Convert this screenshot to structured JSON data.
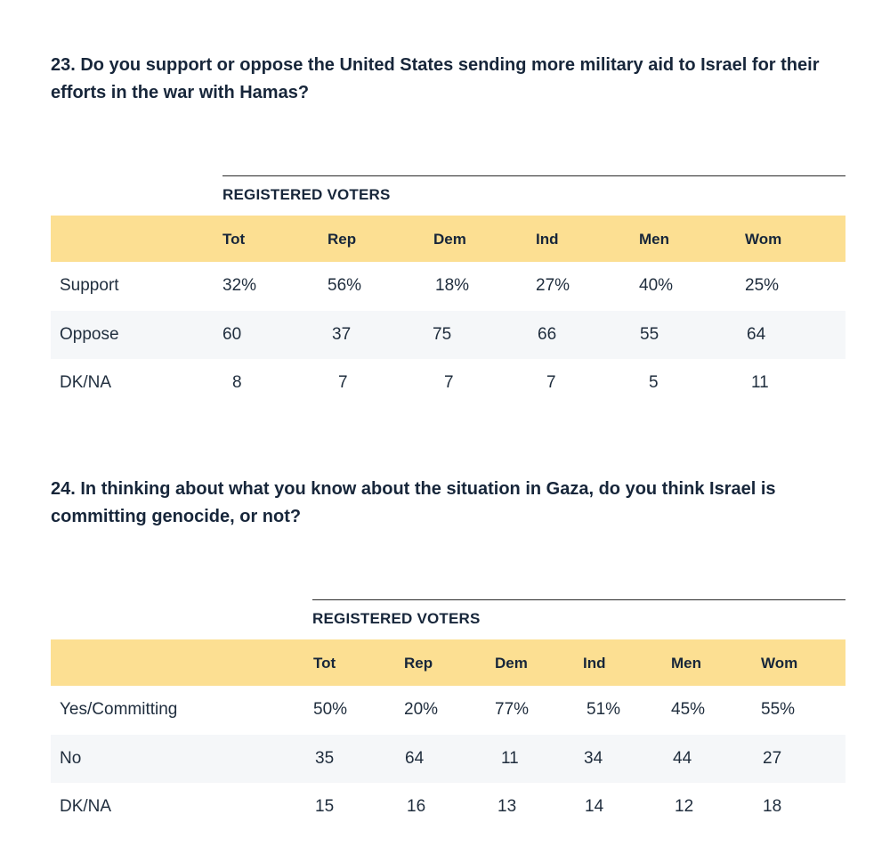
{
  "q23": {
    "question": "23. Do you support or oppose the United States sending more military aid to Israel for their efforts in the war with Hamas?",
    "group_label": "REGISTERED VOTERS",
    "columns": [
      "Tot",
      "Rep",
      "Dem",
      "Ind",
      "Men",
      "Wom"
    ],
    "rows": [
      {
        "label": "Support",
        "values": [
          "32%",
          "56%",
          "18%",
          "27%",
          "40%",
          "25%"
        ]
      },
      {
        "label": "Oppose",
        "values": [
          "60",
          "37",
          "75",
          "66",
          "55",
          "64"
        ]
      },
      {
        "label": "DK/NA",
        "values": [
          "8",
          "7",
          "7",
          "7",
          "5",
          "11"
        ]
      }
    ]
  },
  "q24": {
    "question": "24. In thinking about what you know about the situation in Gaza, do you think Israel is committing genocide, or not?",
    "group_label": "REGISTERED VOTERS",
    "columns": [
      "Tot",
      "Rep",
      "Dem",
      "Ind",
      "Men",
      "Wom"
    ],
    "rows": [
      {
        "label": "Yes/Committing",
        "values": [
          "50%",
          "20%",
          "77%",
          "51%",
          "45%",
          "55%"
        ]
      },
      {
        "label": "No",
        "values": [
          "35",
          "64",
          "11",
          "34",
          "44",
          "27"
        ]
      },
      {
        "label": "DK/NA",
        "values": [
          "15",
          "16",
          "13",
          "14",
          "12",
          "18"
        ]
      }
    ]
  },
  "colors": {
    "header_band": "#fcdf92",
    "alt_row": "#f5f7f9",
    "text": "#17263a"
  }
}
